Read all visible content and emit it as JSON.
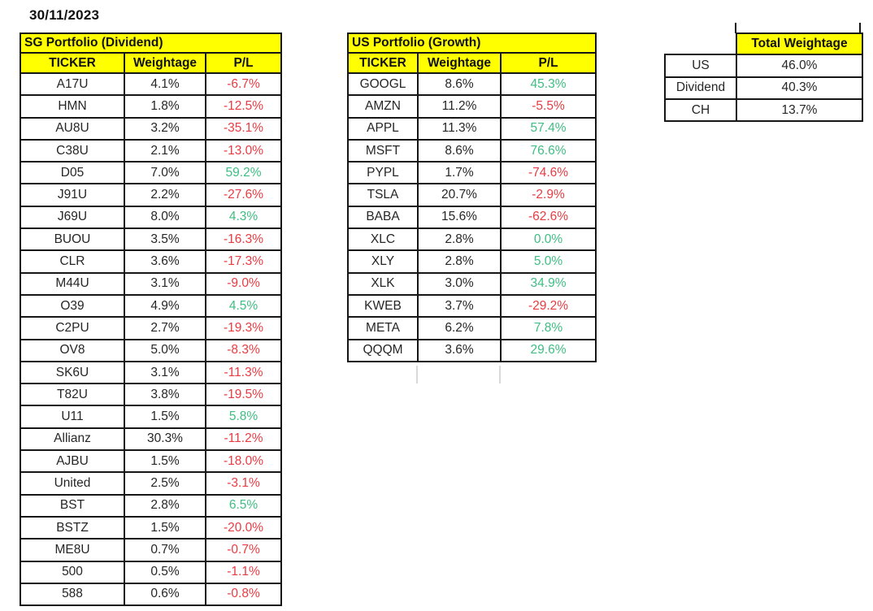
{
  "date_label": "30/11/2023",
  "colors": {
    "header_bg": "#FFFF00",
    "positive": "#3EBE82",
    "negative": "#E83C42",
    "border": "#161616",
    "text": "#262626",
    "faint_gridline": "#d9d9d9"
  },
  "sg_portfolio": {
    "title": "SG Portfolio (Dividend)",
    "headers": [
      "TICKER",
      "Weightage",
      "P/L"
    ],
    "rows": [
      [
        "A17U",
        "4.1%",
        "-6.7%"
      ],
      [
        "HMN",
        "1.8%",
        "-12.5%"
      ],
      [
        "AU8U",
        "3.2%",
        "-35.1%"
      ],
      [
        "C38U",
        "2.1%",
        "-13.0%"
      ],
      [
        "D05",
        "7.0%",
        "59.2%"
      ],
      [
        "J91U",
        "2.2%",
        "-27.6%"
      ],
      [
        "J69U",
        "8.0%",
        "4.3%"
      ],
      [
        "BUOU",
        "3.5%",
        "-16.3%"
      ],
      [
        "CLR",
        "3.6%",
        "-17.3%"
      ],
      [
        "M44U",
        "3.1%",
        "-9.0%"
      ],
      [
        "O39",
        "4.9%",
        "4.5%"
      ],
      [
        "C2PU",
        "2.7%",
        "-19.3%"
      ],
      [
        "OV8",
        "5.0%",
        "-8.3%"
      ],
      [
        "SK6U",
        "3.1%",
        "-11.3%"
      ],
      [
        "T82U",
        "3.8%",
        "-19.5%"
      ],
      [
        "U11",
        "1.5%",
        "5.8%"
      ],
      [
        "Allianz",
        "30.3%",
        "-11.2%"
      ],
      [
        "AJBU",
        "1.5%",
        "-18.0%"
      ],
      [
        "United",
        "2.5%",
        "-3.1%"
      ],
      [
        "BST",
        "2.8%",
        "6.5%"
      ],
      [
        "BSTZ",
        "1.5%",
        "-20.0%"
      ],
      [
        "ME8U",
        "0.7%",
        "-0.7%"
      ],
      [
        "500",
        "0.5%",
        "-1.1%"
      ],
      [
        "588",
        "0.6%",
        "-0.8%"
      ]
    ]
  },
  "us_portfolio": {
    "title": "US Portfolio (Growth)",
    "headers": [
      "TICKER",
      "Weightage",
      "P/L"
    ],
    "rows": [
      [
        "GOOGL",
        "8.6%",
        "45.3%"
      ],
      [
        "AMZN",
        "11.2%",
        "-5.5%"
      ],
      [
        "APPL",
        "11.3%",
        "57.4%"
      ],
      [
        "MSFT",
        "8.6%",
        "76.6%"
      ],
      [
        "PYPL",
        "1.7%",
        "-74.6%"
      ],
      [
        "TSLA",
        "20.7%",
        "-2.9%"
      ],
      [
        "BABA",
        "15.6%",
        "-62.6%"
      ],
      [
        "XLC",
        "2.8%",
        "0.0%"
      ],
      [
        "XLY",
        "2.8%",
        "5.0%"
      ],
      [
        "XLK",
        "3.0%",
        "34.9%"
      ],
      [
        "KWEB",
        "3.7%",
        "-29.2%"
      ],
      [
        "META",
        "6.2%",
        "7.8%"
      ],
      [
        "QQQM",
        "3.6%",
        "29.6%"
      ]
    ]
  },
  "total_weightage": {
    "title": "Total Weightage",
    "rows": [
      [
        "US",
        "46.0%"
      ],
      [
        "Dividend",
        "40.3%"
      ],
      [
        "CH",
        "13.7%"
      ]
    ]
  }
}
